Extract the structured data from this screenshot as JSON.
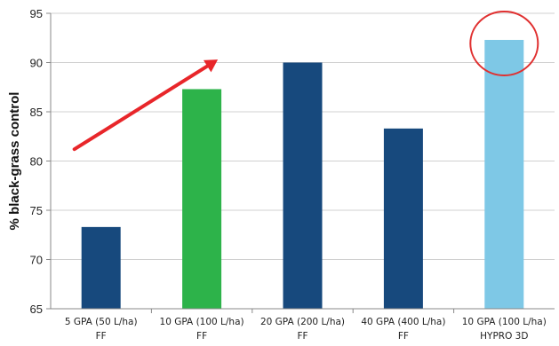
{
  "chart_data": {
    "type": "bar",
    "title": "",
    "xlabel": "",
    "ylabel": "% black-grass control",
    "ylim": [
      65,
      95
    ],
    "yticks": [
      65,
      70,
      75,
      80,
      85,
      90,
      95
    ],
    "grid": true,
    "legend": "none",
    "categories": [
      {
        "line1": "5 GPA (50 L/ha)",
        "line2": "FF"
      },
      {
        "line1": "10 GPA (100 L/ha)",
        "line2": "FF"
      },
      {
        "line1": "20 GPA (200 L/ha)",
        "line2": "FF"
      },
      {
        "line1": "40 GPA (400 L/ha)",
        "line2": "FF"
      },
      {
        "line1": "10 GPA (100 L/ha)",
        "line2": "HYPRO 3D"
      }
    ],
    "values": [
      73.3,
      87.3,
      90.0,
      83.3,
      92.3
    ],
    "bar_colors": [
      "#17497d",
      "#2db34a",
      "#17497d",
      "#17497d",
      "#7ec8e6"
    ],
    "annotations": {
      "arrow_color": "#e8262a",
      "arrow_from": {
        "category_index": 0,
        "value": 81.2
      },
      "arrow_to": {
        "category_index": 1,
        "value": 90.3
      },
      "circle_color": "#e03030",
      "circle_category_index": 4,
      "circle_value": 92.3
    }
  }
}
